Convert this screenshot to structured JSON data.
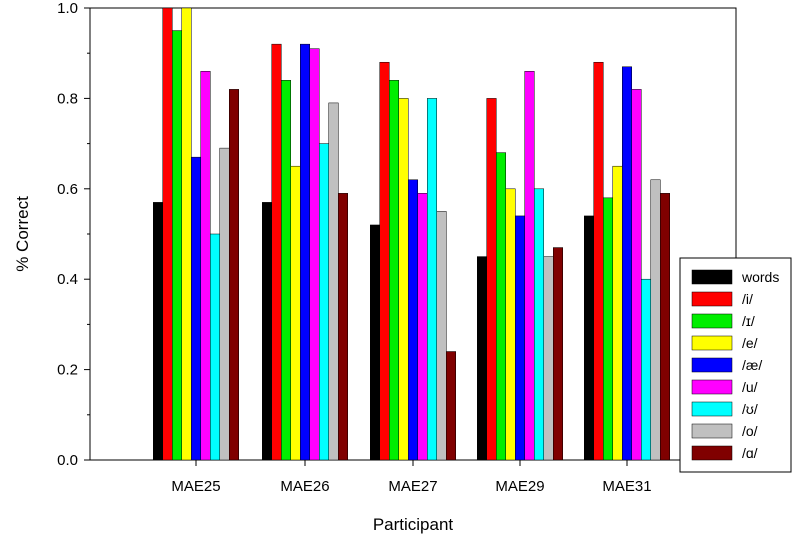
{
  "chart_data": {
    "type": "bar",
    "title": "",
    "xlabel": "Participant",
    "ylabel": "% Correct",
    "ylim": [
      0,
      1.0
    ],
    "yticks": [
      "0.0",
      "0.2",
      "0.4",
      "0.6",
      "0.8",
      "1.0"
    ],
    "grid": false,
    "legend_position": "right",
    "categories": [
      "MAE25",
      "MAE26",
      "MAE27",
      "MAE29",
      "MAE31"
    ],
    "series": [
      {
        "name": "words",
        "color": "#000000",
        "values": [
          0.57,
          0.57,
          0.52,
          0.45,
          0.54
        ]
      },
      {
        "name": "/i/",
        "color": "#ff0000",
        "values": [
          1.0,
          0.92,
          0.88,
          0.8,
          0.88
        ]
      },
      {
        "name": "/ɪ/",
        "color": "#00ee00",
        "values": [
          0.95,
          0.84,
          0.84,
          0.68,
          0.58
        ]
      },
      {
        "name": "/e/",
        "color": "#ffff00",
        "values": [
          1.0,
          0.65,
          0.8,
          0.6,
          0.65
        ]
      },
      {
        "name": "/æ/",
        "color": "#0000ff",
        "values": [
          0.67,
          0.92,
          0.62,
          0.54,
          0.87
        ]
      },
      {
        "name": "/u/",
        "color": "#ff00ff",
        "values": [
          0.86,
          0.91,
          0.59,
          0.86,
          0.82
        ]
      },
      {
        "name": "/ʊ/",
        "color": "#00ffff",
        "values": [
          0.5,
          0.7,
          0.8,
          0.6,
          0.4
        ]
      },
      {
        "name": "/o/",
        "color": "#c0c0c0",
        "values": [
          0.69,
          0.79,
          0.55,
          0.45,
          0.62
        ]
      },
      {
        "name": "/ɑ/",
        "color": "#800000",
        "values": [
          0.82,
          0.59,
          0.24,
          0.47,
          0.59
        ]
      }
    ]
  }
}
